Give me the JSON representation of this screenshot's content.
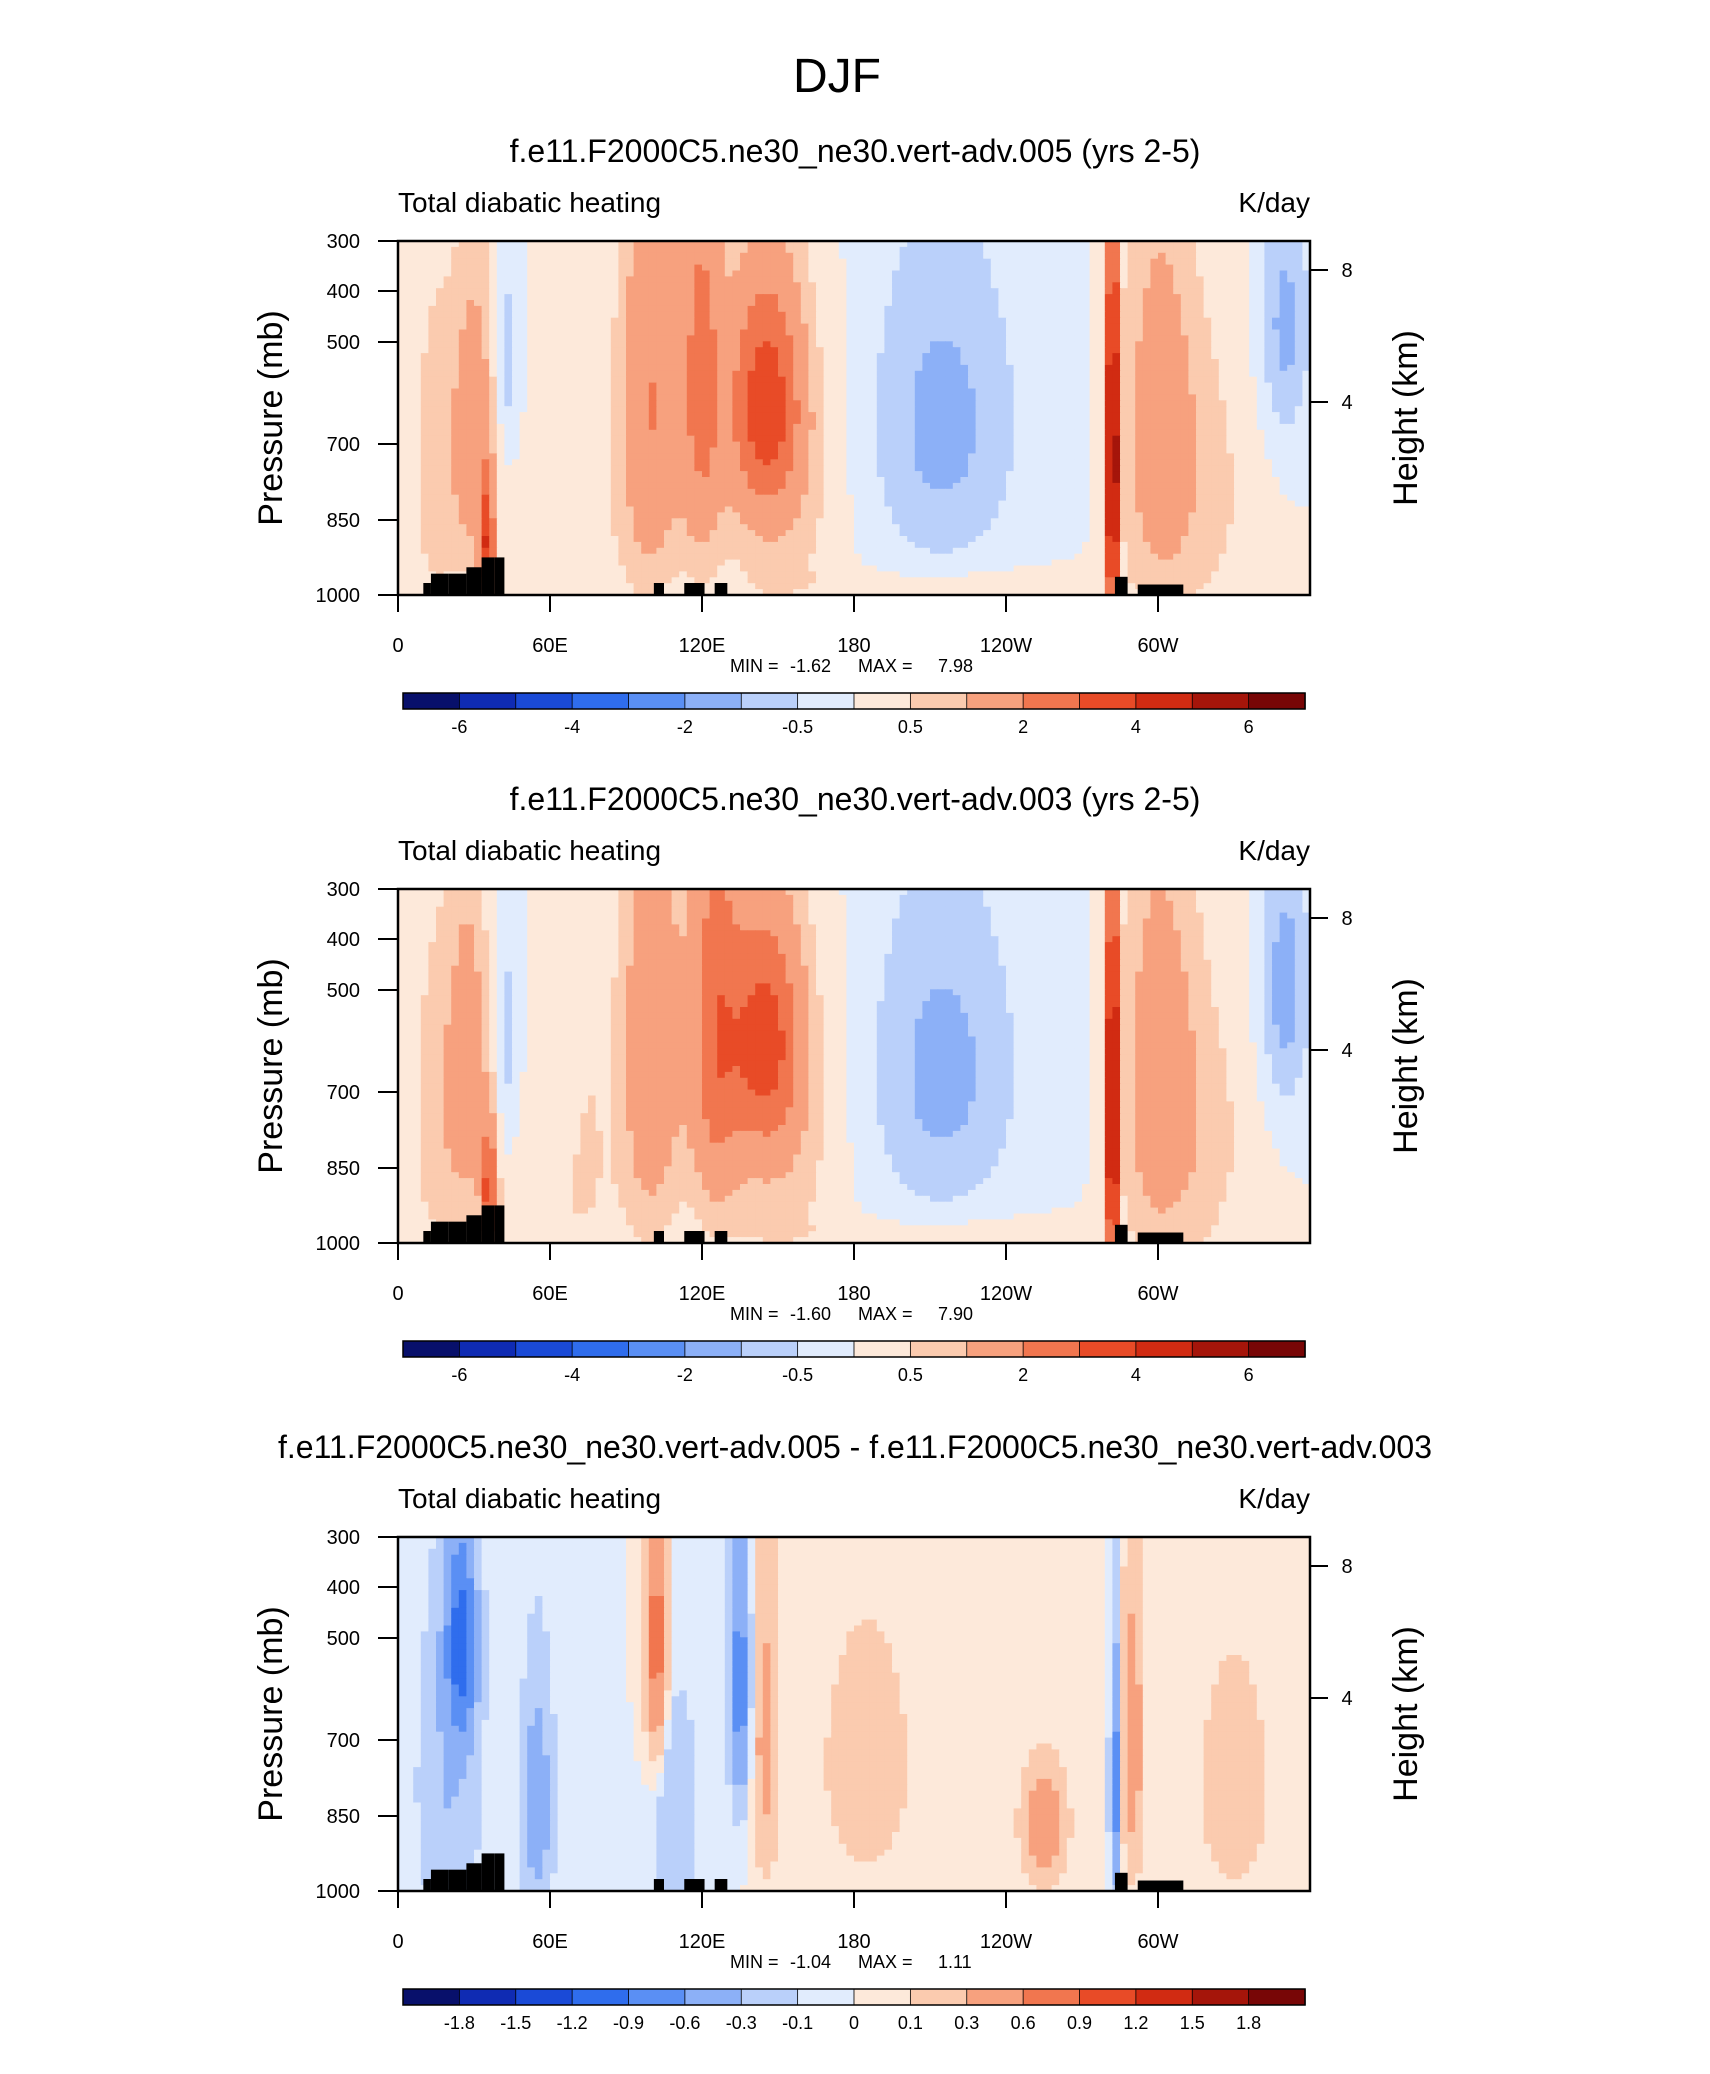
{
  "main_title": "DJF",
  "colors": {
    "seq_range": [
      "#08106b",
      "#0f2bb3",
      "#1a4ad7",
      "#2f6ded",
      "#5a8ff4",
      "#8cb0f7",
      "#bad0fa",
      "#e1ecfd",
      "#fde9da",
      "#fbcbaf",
      "#f7a17e",
      "#f1764f",
      "#e84b27",
      "#d12b12",
      "#a5150a",
      "#780606"
    ],
    "land_mask": "#000000"
  },
  "chart_data": [
    {
      "type": "contour",
      "title": "f.e11.F2000C5.ne30_ne30.vert-adv.005 (yrs 2-5)",
      "left_string": "Total diabatic heating",
      "right_string": "K/day",
      "ylabel": "Pressure (mb)",
      "ylabel_right": "Height (km)",
      "y_ticks": [
        "300",
        "400",
        "500",
        "700",
        "850",
        "1000"
      ],
      "y_tick_values": [
        300,
        400,
        500,
        700,
        850,
        1000
      ],
      "y_right_ticks": [
        "8",
        "4"
      ],
      "y_right_values": [
        8,
        4
      ],
      "x_ticks": [
        "0",
        "60E",
        "120E",
        "180",
        "120W",
        "60W"
      ],
      "x_tick_values": [
        0,
        60,
        120,
        180,
        240,
        300
      ],
      "xlim": [
        0,
        360
      ],
      "ylim": [
        1000,
        300
      ],
      "min_label": "MIN = ",
      "min_value": "-1.62",
      "max_label": "MAX = ",
      "max_value": "7.98",
      "colorbar_levels": [
        "-6",
        "-4",
        "-2",
        "-0.5",
        "0.5",
        "2",
        "4",
        "6"
      ],
      "colorbar_level_positions": [
        1,
        3,
        5,
        7,
        9,
        11,
        13,
        15
      ],
      "field": {
        "features": [
          {
            "lon": 15,
            "p": 650,
            "w": 10,
            "dp": 400,
            "v": 0.8
          },
          {
            "lon": 30,
            "p": 580,
            "w": 8,
            "dp": 300,
            "v": 1.6
          },
          {
            "lon": 35,
            "p": 850,
            "w": 3,
            "dp": 180,
            "v": 3.5
          },
          {
            "lon": 43,
            "p": 450,
            "w": 4,
            "dp": 150,
            "v": -0.8
          },
          {
            "lon": 65,
            "p": 900,
            "w": 25,
            "dp": 250,
            "v": 0.4
          },
          {
            "lon": 75,
            "p": 550,
            "w": 10,
            "dp": 350,
            "v": 0.3
          },
          {
            "lon": 100,
            "p": 520,
            "w": 12,
            "dp": 400,
            "v": 2.0
          },
          {
            "lon": 120,
            "p": 480,
            "w": 8,
            "dp": 350,
            "v": 2.2
          },
          {
            "lon": 145,
            "p": 520,
            "w": 14,
            "dp": 200,
            "v": 3.2
          },
          {
            "lon": 150,
            "p": 700,
            "w": 25,
            "dp": 400,
            "v": 0.8
          },
          {
            "lon": 215,
            "p": 560,
            "w": 30,
            "dp": 330,
            "v": -1.2
          },
          {
            "lon": 230,
            "p": 960,
            "w": 60,
            "dp": 50,
            "v": 0.4
          },
          {
            "lon": 282,
            "p": 640,
            "w": 2.2,
            "dp": 400,
            "v": 7.5
          },
          {
            "lon": 300,
            "p": 580,
            "w": 14,
            "dp": 380,
            "v": 1.5
          },
          {
            "lon": 320,
            "p": 700,
            "w": 20,
            "dp": 400,
            "v": 0.6
          },
          {
            "lon": 350,
            "p": 400,
            "w": 10,
            "dp": 180,
            "v": -1.2
          }
        ]
      }
    },
    {
      "type": "contour",
      "title": "f.e11.F2000C5.ne30_ne30.vert-adv.003 (yrs 2-5)",
      "left_string": "Total diabatic heating",
      "right_string": "K/day",
      "ylabel": "Pressure (mb)",
      "ylabel_right": "Height (km)",
      "y_ticks": [
        "300",
        "400",
        "500",
        "700",
        "850",
        "1000"
      ],
      "y_tick_values": [
        300,
        400,
        500,
        700,
        850,
        1000
      ],
      "y_right_ticks": [
        "8",
        "4"
      ],
      "y_right_values": [
        8,
        4
      ],
      "x_ticks": [
        "0",
        "60E",
        "120E",
        "180",
        "120W",
        "60W"
      ],
      "x_tick_values": [
        0,
        60,
        120,
        180,
        240,
        300
      ],
      "xlim": [
        0,
        360
      ],
      "ylim": [
        1000,
        300
      ],
      "min_label": "MIN = ",
      "min_value": "-1.60",
      "max_label": "MAX = ",
      "max_value": "7.90",
      "colorbar_levels": [
        "-6",
        "-4",
        "-2",
        "-0.5",
        "0.5",
        "2",
        "4",
        "6"
      ],
      "colorbar_level_positions": [
        1,
        3,
        5,
        7,
        9,
        11,
        13,
        15
      ],
      "field": {
        "features": [
          {
            "lon": 15,
            "p": 650,
            "w": 10,
            "dp": 400,
            "v": 0.8
          },
          {
            "lon": 28,
            "p": 560,
            "w": 8,
            "dp": 320,
            "v": 1.5
          },
          {
            "lon": 36,
            "p": 850,
            "w": 3,
            "dp": 180,
            "v": 3.4
          },
          {
            "lon": 43,
            "p": 500,
            "w": 4,
            "dp": 200,
            "v": -0.7
          },
          {
            "lon": 65,
            "p": 900,
            "w": 25,
            "dp": 250,
            "v": 0.4
          },
          {
            "lon": 75,
            "p": 550,
            "w": 10,
            "dp": 350,
            "v": 0.4
          },
          {
            "lon": 100,
            "p": 520,
            "w": 12,
            "dp": 400,
            "v": 1.8
          },
          {
            "lon": 125,
            "p": 480,
            "w": 10,
            "dp": 350,
            "v": 2.4
          },
          {
            "lon": 145,
            "p": 500,
            "w": 14,
            "dp": 200,
            "v": 3.0
          },
          {
            "lon": 150,
            "p": 700,
            "w": 25,
            "dp": 400,
            "v": 0.8
          },
          {
            "lon": 215,
            "p": 560,
            "w": 30,
            "dp": 330,
            "v": -1.2
          },
          {
            "lon": 230,
            "p": 960,
            "w": 60,
            "dp": 50,
            "v": 0.4
          },
          {
            "lon": 282,
            "p": 640,
            "w": 2.2,
            "dp": 400,
            "v": 7.3
          },
          {
            "lon": 300,
            "p": 580,
            "w": 14,
            "dp": 380,
            "v": 1.6
          },
          {
            "lon": 320,
            "p": 700,
            "w": 20,
            "dp": 400,
            "v": 0.6
          },
          {
            "lon": 350,
            "p": 420,
            "w": 10,
            "dp": 200,
            "v": -1.3
          }
        ]
      }
    },
    {
      "type": "contour",
      "title": "f.e11.F2000C5.ne30_ne30.vert-adv.005 - f.e11.F2000C5.ne30_ne30.vert-adv.003",
      "left_string": "Total diabatic heating",
      "right_string": "K/day",
      "ylabel": "Pressure (mb)",
      "ylabel_right": "Height (km)",
      "y_ticks": [
        "300",
        "400",
        "500",
        "700",
        "850",
        "1000"
      ],
      "y_tick_values": [
        300,
        400,
        500,
        700,
        850,
        1000
      ],
      "y_right_ticks": [
        "8",
        "4"
      ],
      "y_right_values": [
        8,
        4
      ],
      "x_ticks": [
        "0",
        "60E",
        "120E",
        "180",
        "120W",
        "60W"
      ],
      "x_tick_values": [
        0,
        60,
        120,
        180,
        240,
        300
      ],
      "xlim": [
        0,
        360
      ],
      "ylim": [
        1000,
        300
      ],
      "min_label": "MIN = ",
      "min_value": "-1.04",
      "max_label": "MAX = ",
      "max_value": "1.11",
      "colorbar_levels": [
        "-1.8",
        "-1.5",
        "-1.2",
        "-0.9",
        "-0.6",
        "-0.3",
        "-0.1",
        "0",
        "0.1",
        "0.3",
        "0.6",
        "0.9",
        "1.2",
        "1.5",
        "1.8"
      ],
      "colorbar_level_positions": [
        1,
        2,
        3,
        4,
        5,
        6,
        7,
        8,
        9,
        10,
        11,
        12,
        13,
        14,
        15
      ],
      "field": {
        "features": [
          {
            "lon": 25,
            "p": 430,
            "w": 6,
            "dp": 150,
            "v": -1.0
          },
          {
            "lon": 20,
            "p": 700,
            "w": 12,
            "dp": 400,
            "v": -0.3
          },
          {
            "lon": 55,
            "p": 750,
            "w": 6,
            "dp": 300,
            "v": -0.5
          },
          {
            "lon": 102,
            "p": 430,
            "w": 4,
            "dp": 180,
            "v": 0.8
          },
          {
            "lon": 135,
            "p": 500,
            "w": 4,
            "dp": 220,
            "v": -0.8
          },
          {
            "lon": 145,
            "p": 600,
            "w": 5,
            "dp": 300,
            "v": 0.4
          },
          {
            "lon": 110,
            "p": 800,
            "w": 8,
            "dp": 300,
            "v": -0.3
          },
          {
            "lon": 185,
            "p": 650,
            "w": 25,
            "dp": 400,
            "v": 0.15
          },
          {
            "lon": 255,
            "p": 800,
            "w": 8,
            "dp": 150,
            "v": 0.6
          },
          {
            "lon": 283,
            "p": 700,
            "w": 1.8,
            "dp": 300,
            "v": -0.8
          },
          {
            "lon": 290,
            "p": 600,
            "w": 4,
            "dp": 300,
            "v": 0.5
          },
          {
            "lon": 330,
            "p": 700,
            "w": 20,
            "dp": 400,
            "v": 0.15
          }
        ]
      }
    }
  ]
}
